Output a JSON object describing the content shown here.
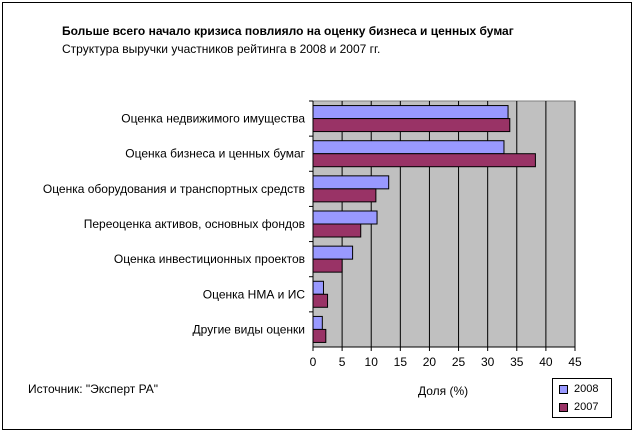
{
  "chart_data": {
    "type": "bar",
    "orientation": "horizontal",
    "title": "Больше всего начало кризиса повлияло на оценку бизнеса и ценных бумаг",
    "subtitle": "Структура выручки участников рейтинга в 2008 и 2007 гг.",
    "xlabel": "Доля (%)",
    "ylabel": "",
    "source": "Источник: \"Эксперт РА\"",
    "categories": [
      "Оценка недвижимого имущества",
      "Оценка бизнеса и ценных бумаг",
      "Оценка оборудования и транспортных средств",
      "Переоценка активов, основных фондов",
      "Оценка инвестиционных проектов",
      "Оценка НМА и ИС",
      "Другие виды оценки"
    ],
    "series": [
      {
        "name": "2008",
        "color": "#9999ff",
        "values": [
          33.5,
          32.8,
          13.0,
          11.0,
          6.8,
          1.8,
          1.6
        ]
      },
      {
        "name": "2007",
        "color": "#993366",
        "values": [
          33.8,
          38.2,
          10.8,
          8.2,
          5.0,
          2.5,
          2.2
        ]
      }
    ],
    "xlim": [
      0,
      45
    ],
    "xticks": [
      "0",
      "5",
      "10",
      "15",
      "20",
      "25",
      "30",
      "35",
      "40",
      "45"
    ],
    "grid": true,
    "plot_background": "#c0c0c0",
    "legend_position": "bottom-right"
  }
}
